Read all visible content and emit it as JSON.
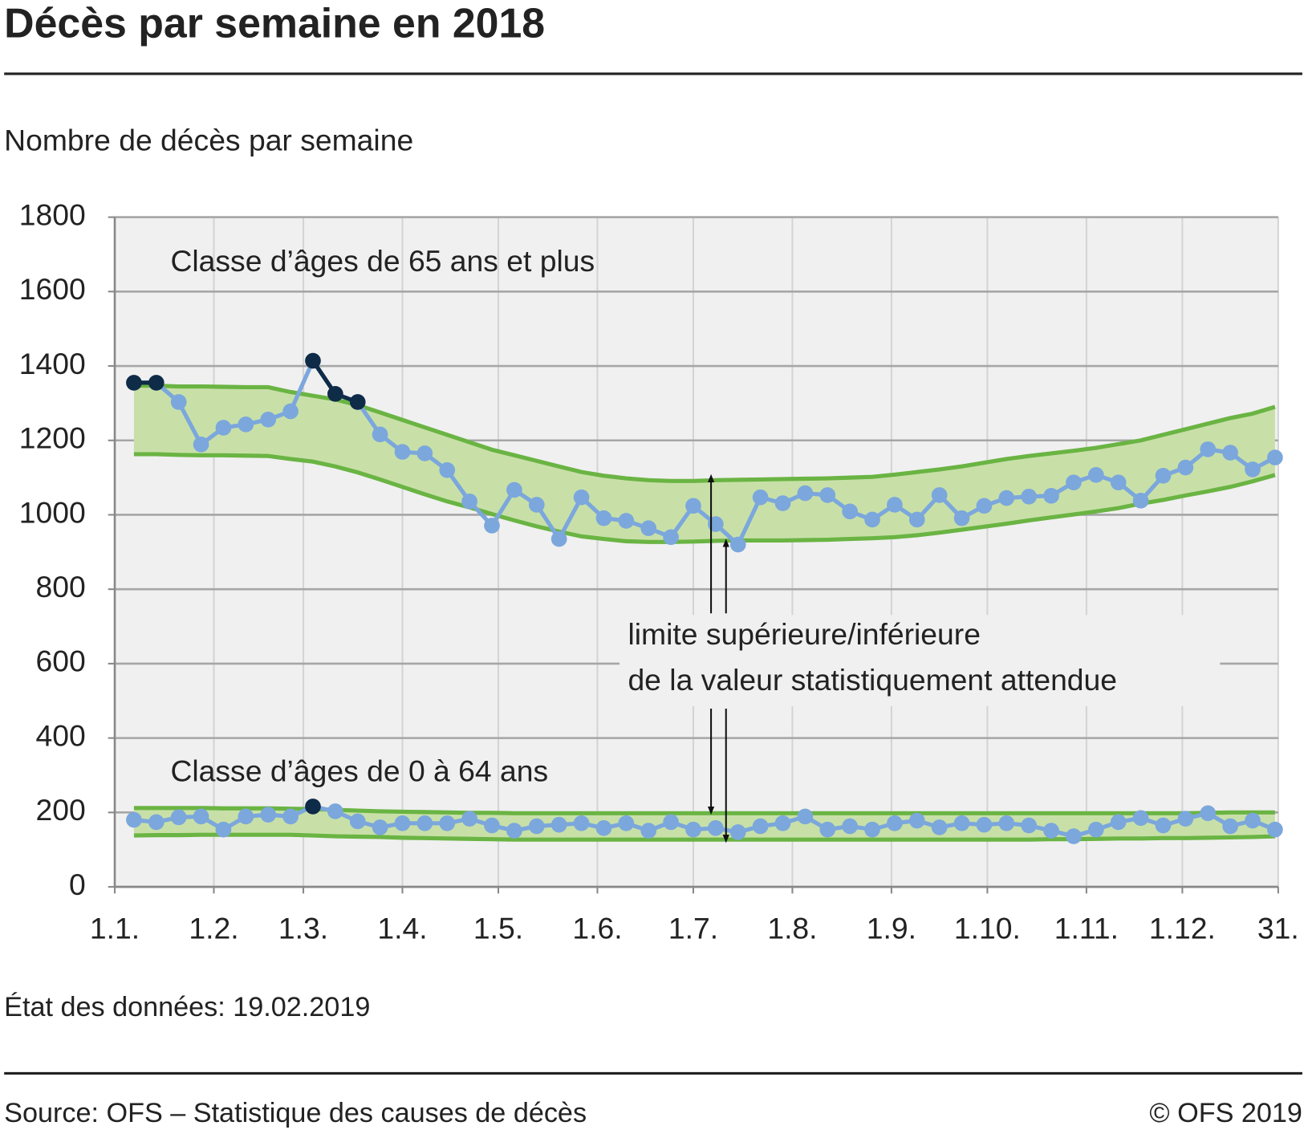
{
  "chart_data": {
    "type": "line",
    "title": "Décès par semaine en 2018",
    "y_label": "Nombre de décès par semaine",
    "annotation": [
      "limite supérieure/inférieure",
      "de la valeur statistiquement attendue"
    ],
    "note": "État des données: 19.02.2019",
    "source": "Source: OFS – Statistique des causes de décès",
    "copyright": "© OFS 2019",
    "xlim": [
      0,
      364
    ],
    "xticks": [
      {
        "value": 0,
        "label": "1.1."
      },
      {
        "value": 31,
        "label": "1.2."
      },
      {
        "value": 59,
        "label": "1.3."
      },
      {
        "value": 90,
        "label": "1.4."
      },
      {
        "value": 120,
        "label": "1.5."
      },
      {
        "value": 151,
        "label": "1.6."
      },
      {
        "value": 181,
        "label": "1.7."
      },
      {
        "value": 212,
        "label": "1.8."
      },
      {
        "value": 243,
        "label": "1.9."
      },
      {
        "value": 273,
        "label": "1.10."
      },
      {
        "value": 304,
        "label": "1.11."
      },
      {
        "value": 334,
        "label": "1.12."
      },
      {
        "value": 364,
        "label": "31."
      }
    ],
    "ylim": [
      0,
      1800
    ],
    "yticks": [
      0,
      200,
      400,
      600,
      800,
      1000,
      1200,
      1400,
      1600,
      1800
    ],
    "grid": true,
    "band_color": "#c8e0a8",
    "band_line_color": "#6ab443",
    "highlight_color": "#0e2b48",
    "x": [
      6,
      13,
      20,
      27,
      34,
      41,
      48,
      55,
      62,
      69,
      76,
      83,
      90,
      97,
      104,
      111,
      118,
      125,
      132,
      139,
      146,
      153,
      160,
      167,
      174,
      181,
      188,
      195,
      202,
      209,
      216,
      223,
      230,
      237,
      244,
      251,
      258,
      265,
      272,
      279,
      286,
      293,
      300,
      307,
      314,
      321,
      328,
      335,
      342,
      349,
      356,
      363
    ],
    "series": [
      {
        "name": "Classe d’âges de 65 ans et plus",
        "color": "#7ba7dc",
        "values": [
          1355,
          1355,
          1303,
          1189,
          1234,
          1243,
          1256,
          1278,
          1414,
          1325,
          1303,
          1216,
          1169,
          1165,
          1120,
          1036,
          971,
          1067,
          1027,
          935,
          1047,
          991,
          984,
          964,
          940,
          1024,
          975,
          920,
          1047,
          1031,
          1058,
          1053,
          1009,
          987,
          1027,
          987,
          1053,
          991,
          1024,
          1045,
          1049,
          1051,
          1087,
          1107,
          1087,
          1038,
          1105,
          1127,
          1176,
          1167,
          1122,
          1154
        ],
        "upper": [
          1347,
          1347,
          1345,
          1345,
          1344,
          1343,
          1343,
          1330,
          1320,
          1310,
          1295,
          1275,
          1255,
          1235,
          1215,
          1195,
          1175,
          1160,
          1145,
          1130,
          1115,
          1105,
          1098,
          1093,
          1091,
          1091,
          1093,
          1094,
          1095,
          1096,
          1097,
          1098,
          1100,
          1102,
          1108,
          1115,
          1122,
          1130,
          1140,
          1150,
          1158,
          1165,
          1172,
          1180,
          1190,
          1200,
          1215,
          1230,
          1245,
          1260,
          1272,
          1290
        ],
        "lower": [
          1163,
          1163,
          1161,
          1160,
          1160,
          1159,
          1158,
          1150,
          1143,
          1130,
          1114,
          1095,
          1075,
          1055,
          1036,
          1020,
          1002,
          985,
          969,
          955,
          942,
          935,
          929,
          927,
          927,
          928,
          930,
          931,
          931,
          931,
          932,
          933,
          935,
          937,
          940,
          945,
          952,
          960,
          968,
          976,
          985,
          993,
          1001,
          1009,
          1018,
          1030,
          1040,
          1052,
          1063,
          1075,
          1090,
          1107
        ]
      },
      {
        "name": "Classe d’âges de 0 à 64 ans",
        "color": "#7ba7dc",
        "values": [
          180,
          174,
          187,
          189,
          154,
          189,
          194,
          189,
          216,
          203,
          176,
          160,
          171,
          171,
          171,
          183,
          165,
          151,
          163,
          167,
          171,
          158,
          171,
          151,
          174,
          154,
          158,
          147,
          163,
          171,
          189,
          154,
          163,
          154,
          171,
          178,
          160,
          171,
          167,
          171,
          165,
          151,
          136,
          154,
          174,
          185,
          165,
          183,
          198,
          163,
          178,
          154
        ],
        "upper": [
          212,
          212,
          212,
          212,
          211,
          211,
          211,
          210,
          209,
          207,
          205,
          203,
          202,
          201,
          200,
          199,
          199,
          198,
          198,
          198,
          198,
          198,
          198,
          198,
          198,
          198,
          198,
          198,
          198,
          198,
          198,
          198,
          198,
          198,
          198,
          198,
          198,
          198,
          198,
          198,
          198,
          198,
          198,
          198,
          198,
          198,
          198,
          198,
          199,
          200,
          200,
          200
        ],
        "lower": [
          138,
          139,
          139,
          140,
          140,
          140,
          140,
          140,
          138,
          136,
          135,
          134,
          132,
          131,
          130,
          129,
          128,
          127,
          127,
          127,
          127,
          127,
          127,
          127,
          127,
          127,
          127,
          127,
          127,
          127,
          127,
          127,
          127,
          127,
          127,
          127,
          127,
          127,
          127,
          127,
          127,
          128,
          128,
          129,
          130,
          130,
          131,
          131,
          132,
          133,
          134,
          136
        ]
      }
    ]
  }
}
